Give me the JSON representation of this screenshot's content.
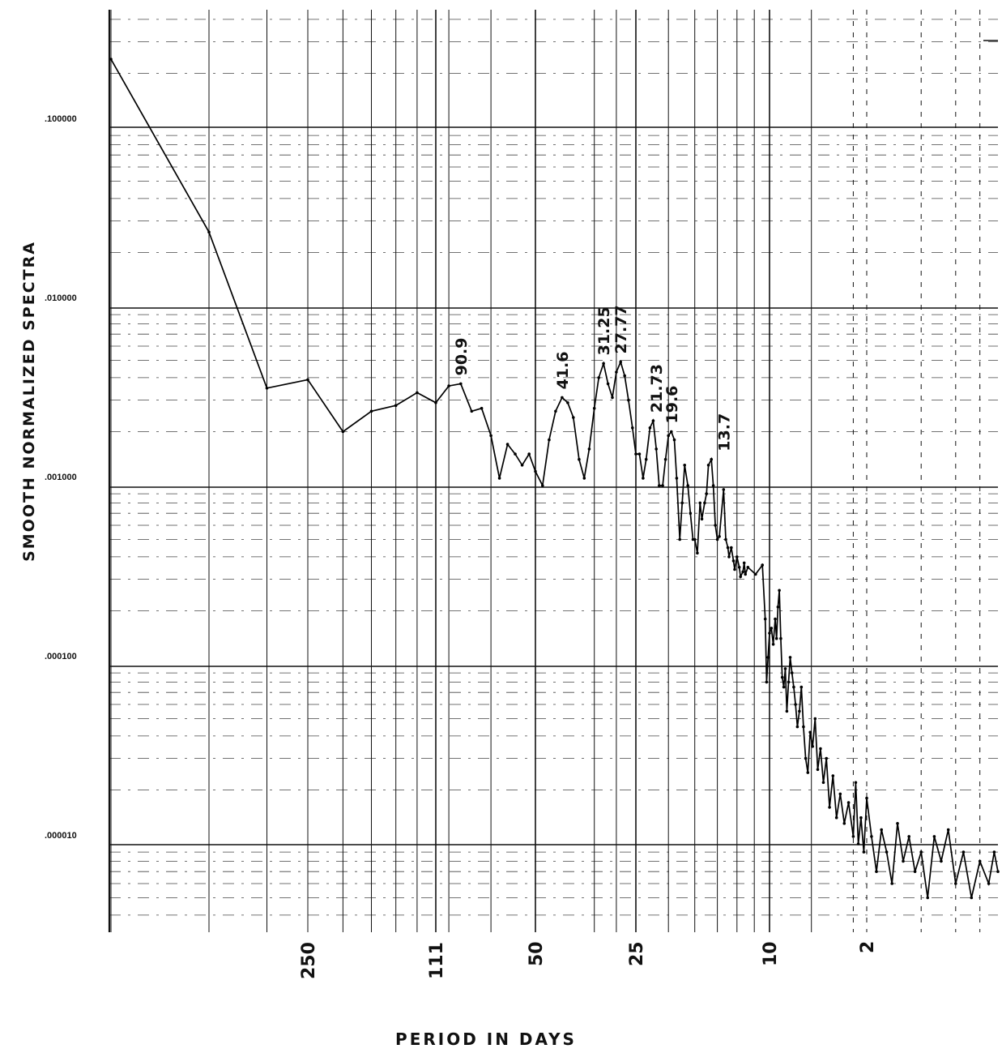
{
  "chart_data": {
    "type": "line",
    "title": "",
    "xlabel": "PERIOD IN DAYS",
    "ylabel": "SMOOTH NORMALIZED SPECTRA",
    "yscale": "log",
    "ylim": [
      4e-06,
      0.6
    ],
    "y_tick_labels": [
      ".100000",
      ".010000",
      ".001000",
      ".000100",
      ".000010"
    ],
    "y_tick_values": [
      0.1,
      0.01,
      0.001,
      0.0001,
      1e-05
    ],
    "x_tick_labels": [
      "250",
      "111",
      "50",
      "25",
      "10",
      "2"
    ],
    "grid": true,
    "annotations": [
      {
        "text": "90.9",
        "x": 90.9,
        "y": 0.0037
      },
      {
        "text": "41.6",
        "x": 41.6,
        "y": 0.0031
      },
      {
        "text": "31.25",
        "x": 31.25,
        "y": 0.0048
      },
      {
        "text": "27.77",
        "x": 27.77,
        "y": 0.0049
      },
      {
        "text": "21.73",
        "x": 21.73,
        "y": 0.0023
      },
      {
        "text": "19.6",
        "x": 19.6,
        "y": 0.002
      },
      {
        "text": "13.7",
        "x": 13.7,
        "y": 0.0014
      }
    ],
    "series": [
      {
        "points": [
          [
            1000,
            0.24
          ],
          [
            500,
            0.026
          ],
          [
            333,
            0.0035
          ],
          [
            250,
            0.0039
          ],
          [
            200,
            0.002
          ],
          [
            167,
            0.0026
          ],
          [
            143,
            0.0028
          ],
          [
            125,
            0.0033
          ],
          [
            111,
            0.0029
          ],
          [
            100,
            0.0036
          ],
          [
            90.9,
            0.0037
          ],
          [
            83.3,
            0.0026
          ],
          [
            76.9,
            0.0027
          ],
          [
            71.4,
            0.0019
          ],
          [
            66.7,
            0.0011
          ],
          [
            62.5,
            0.0017
          ],
          [
            58.8,
            0.0015
          ],
          [
            55.6,
            0.0013
          ],
          [
            52.6,
            0.0015
          ],
          [
            50,
            0.0012
          ],
          [
            47.6,
            0.001
          ],
          [
            45.5,
            0.0018
          ],
          [
            43.5,
            0.0026
          ],
          [
            41.6,
            0.0031
          ],
          [
            40,
            0.0029
          ],
          [
            38.5,
            0.0024
          ],
          [
            37,
            0.0014
          ],
          [
            35.7,
            0.0011
          ],
          [
            34.5,
            0.0016
          ],
          [
            33.3,
            0.0027
          ],
          [
            32.3,
            0.004
          ],
          [
            31.25,
            0.0048
          ],
          [
            30.3,
            0.0037
          ],
          [
            29.4,
            0.0031
          ],
          [
            28.6,
            0.0043
          ],
          [
            27.77,
            0.0049
          ],
          [
            27,
            0.0041
          ],
          [
            26.3,
            0.003
          ],
          [
            25.6,
            0.0021
          ],
          [
            25,
            0.0015
          ],
          [
            24.4,
            0.0015
          ],
          [
            23.8,
            0.0011
          ],
          [
            23.3,
            0.0014
          ],
          [
            22.7,
            0.0021
          ],
          [
            22.2,
            0.0023
          ],
          [
            21.73,
            0.0016
          ],
          [
            21.3,
            0.001
          ],
          [
            20.8,
            0.001
          ],
          [
            20.4,
            0.0014
          ],
          [
            20,
            0.0019
          ],
          [
            19.6,
            0.002
          ],
          [
            19.2,
            0.0018
          ],
          [
            18.9,
            0.0011
          ],
          [
            18.5,
            0.0005
          ],
          [
            18.2,
            0.0008
          ],
          [
            17.9,
            0.0013
          ],
          [
            17.5,
            0.001
          ],
          [
            17.2,
            0.0007
          ],
          [
            16.9,
            0.0005
          ],
          [
            16.7,
            0.0005
          ],
          [
            16.4,
            0.00042
          ],
          [
            16.1,
            0.0008
          ],
          [
            15.9,
            0.00065
          ],
          [
            15.6,
            0.0008
          ],
          [
            15.4,
            0.0009
          ],
          [
            15.2,
            0.0013
          ],
          [
            14.9,
            0.0014
          ],
          [
            14.7,
            0.001
          ],
          [
            14.5,
            0.0006
          ],
          [
            14.3,
            0.0005
          ],
          [
            14.1,
            0.00052
          ],
          [
            13.7,
            0.00095
          ],
          [
            13.5,
            0.0005
          ],
          [
            13.3,
            0.00045
          ],
          [
            13.2,
            0.0004
          ],
          [
            13,
            0.00045
          ],
          [
            12.8,
            0.00038
          ],
          [
            12.7,
            0.00034
          ],
          [
            12.5,
            0.0004
          ],
          [
            12.3,
            0.00035
          ],
          [
            12.2,
            0.00031
          ],
          [
            12,
            0.00033
          ],
          [
            11.9,
            0.00037
          ],
          [
            11.8,
            0.00032
          ],
          [
            11.6,
            0.00035
          ],
          [
            11,
            0.00032
          ],
          [
            10.5,
            0.00036
          ],
          [
            10.3,
            0.00018
          ],
          [
            10.2,
            8e-05
          ],
          [
            10.1,
            0.00011
          ],
          [
            10,
            0.00015
          ],
          [
            9.7,
            0.00016
          ],
          [
            9.4,
            0.00013
          ],
          [
            9.1,
            0.00018
          ],
          [
            8.9,
            0.00014
          ],
          [
            8.7,
            0.00021
          ],
          [
            8.5,
            0.00026
          ],
          [
            8.3,
            0.00014
          ],
          [
            8.1,
            8.5e-05
          ],
          [
            7.9,
            7.5e-05
          ],
          [
            7.7,
            9.5e-05
          ],
          [
            7.5,
            5.5e-05
          ],
          [
            7.3,
            8e-05
          ],
          [
            7.1,
            0.00011
          ],
          [
            6.9,
            9e-05
          ],
          [
            6.7,
            7.5e-05
          ],
          [
            6.5,
            6e-05
          ],
          [
            6.3,
            4.5e-05
          ],
          [
            6.1,
            5.5e-05
          ],
          [
            5.9,
            7.5e-05
          ],
          [
            5.7,
            4.5e-05
          ],
          [
            5.5,
            3e-05
          ],
          [
            5.3,
            2.5e-05
          ],
          [
            5.1,
            4.2e-05
          ],
          [
            4.9,
            3.5e-05
          ],
          [
            4.7,
            5e-05
          ],
          [
            4.5,
            2.6e-05
          ],
          [
            4.3,
            3.4e-05
          ],
          [
            4.1,
            2.2e-05
          ],
          [
            3.9,
            3e-05
          ],
          [
            3.7,
            1.6e-05
          ],
          [
            3.5,
            2.4e-05
          ],
          [
            3.3,
            1.4e-05
          ],
          [
            3.1,
            1.9e-05
          ],
          [
            2.9,
            1.3e-05
          ],
          [
            2.7,
            1.7e-05
          ],
          [
            2.5,
            1.1e-05
          ],
          [
            2.4,
            2.2e-05
          ],
          [
            2.3,
            1e-05
          ],
          [
            2.2,
            1.4e-05
          ],
          [
            2.1,
            9e-06
          ],
          [
            2.0,
            1.8e-05
          ],
          [
            1.95,
            1.1e-05
          ],
          [
            1.9,
            7e-06
          ],
          [
            1.85,
            1.2e-05
          ],
          [
            1.8,
            9e-06
          ],
          [
            1.75,
            6e-06
          ],
          [
            1.7,
            1.3e-05
          ],
          [
            1.65,
            8e-06
          ],
          [
            1.6,
            1.1e-05
          ],
          [
            1.55,
            7e-06
          ],
          [
            1.5,
            9e-06
          ],
          [
            1.45,
            5e-06
          ],
          [
            1.4,
            1.1e-05
          ],
          [
            1.35,
            8e-06
          ],
          [
            1.3,
            1.2e-05
          ],
          [
            1.25,
            6e-06
          ],
          [
            1.2,
            9e-06
          ],
          [
            1.15,
            5e-06
          ],
          [
            1.1,
            8e-06
          ],
          [
            1.05,
            6e-06
          ],
          [
            1.02,
            9e-06
          ],
          [
            1.0,
            7e-06
          ]
        ]
      }
    ]
  }
}
